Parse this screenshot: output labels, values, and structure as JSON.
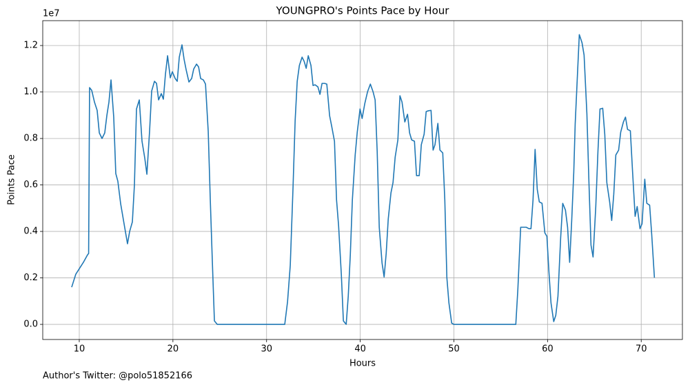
{
  "chart_data": {
    "type": "line",
    "title": "YOUNGPRO's Points Pace by Hour",
    "x_label": "Hours",
    "y_label": "Points Pace",
    "y_offset_label": "1e7",
    "footer": "Author's Twitter: @polo51852166",
    "x": [
      9.19,
      9.63,
      10.44,
      10.88,
      11.0,
      11.1,
      11.33,
      11.62,
      11.91,
      12.14,
      12.43,
      12.72,
      12.95,
      13.17,
      13.39,
      13.68,
      13.9,
      14.12,
      14.42,
      14.86,
      15.15,
      15.38,
      15.67,
      15.89,
      16.11,
      16.41,
      16.7,
      17.0,
      17.22,
      17.51,
      17.73,
      18.03,
      18.25,
      18.47,
      18.76,
      18.98,
      19.2,
      19.43,
      19.72,
      19.94,
      20.24,
      20.46,
      20.68,
      20.97,
      21.19,
      21.41,
      21.71,
      22.0,
      22.22,
      22.52,
      22.74,
      22.96,
      23.25,
      23.48,
      23.77,
      23.99,
      24.21,
      24.43,
      24.73,
      31.94,
      32.24,
      32.53,
      32.83,
      33.05,
      33.27,
      33.5,
      33.79,
      34.01,
      34.23,
      34.45,
      34.74,
      34.96,
      35.18,
      35.48,
      35.7,
      35.92,
      36.21,
      36.43,
      36.73,
      36.95,
      37.25,
      37.47,
      37.69,
      37.98,
      38.2,
      38.5,
      38.72,
      38.94,
      39.16,
      39.46,
      39.68,
      39.98,
      40.2,
      40.49,
      40.78,
      41.08,
      41.37,
      41.59,
      41.81,
      42.03,
      42.33,
      42.55,
      42.77,
      42.99,
      43.28,
      43.5,
      43.73,
      44.02,
      44.24,
      44.46,
      44.76,
      45.05,
      45.27,
      45.49,
      45.79,
      46.01,
      46.3,
      46.52,
      46.82,
      47.04,
      47.26,
      47.56,
      47.78,
      47.98,
      48.29,
      48.51,
      48.81,
      49.03,
      49.25,
      49.47,
      49.76,
      49.98,
      56.61,
      56.83,
      57.13,
      57.42,
      57.72,
      58.01,
      58.23,
      58.45,
      58.67,
      58.9,
      59.12,
      59.41,
      59.71,
      59.93,
      60.15,
      60.37,
      60.66,
      60.88,
      61.11,
      61.4,
      61.62,
      61.91,
      62.14,
      62.36,
      62.58,
      62.8,
      62.95,
      63.17,
      63.39,
      63.68,
      63.9,
      64.2,
      64.42,
      64.64,
      64.86,
      65.15,
      65.38,
      65.6,
      65.89,
      66.11,
      66.33,
      66.63,
      66.85,
      67.07,
      67.29,
      67.59,
      67.81,
      68.1,
      68.32,
      68.54,
      68.84,
      69.06,
      69.35,
      69.57,
      69.87,
      70.09,
      70.38,
      70.6,
      70.9,
      71.12,
      71.41
    ],
    "series": [
      {
        "color": "#1f77b4",
        "values": [
          1600000,
          2160000,
          2670000,
          2990000,
          3050000,
          10190000,
          10070000,
          9570000,
          9210000,
          8240000,
          8000000,
          8240000,
          9000000,
          9570000,
          10520000,
          8920000,
          6490000,
          6160000,
          5190000,
          4150000,
          3470000,
          4000000,
          4410000,
          6010000,
          9270000,
          9660000,
          7880000,
          7140000,
          6460000,
          8330000,
          10040000,
          10460000,
          10370000,
          9660000,
          9930000,
          9690000,
          10760000,
          11560000,
          10610000,
          10870000,
          10580000,
          10460000,
          11500000,
          12030000,
          11410000,
          10960000,
          10430000,
          10580000,
          10990000,
          11200000,
          11080000,
          10580000,
          10520000,
          10340000,
          8300000,
          5360000,
          2700000,
          150000,
          0,
          0,
          980000,
          2550000,
          5960000,
          8770000,
          10460000,
          11140000,
          11500000,
          11320000,
          11020000,
          11560000,
          11140000,
          10280000,
          10310000,
          10220000,
          9900000,
          10370000,
          10370000,
          10340000,
          8980000,
          8530000,
          7880000,
          5360000,
          4240000,
          2160000,
          150000,
          0,
          1210000,
          2990000,
          5360000,
          7290000,
          8270000,
          9270000,
          8860000,
          9510000,
          10010000,
          10340000,
          10010000,
          9660000,
          7440000,
          4180000,
          2640000,
          2040000,
          3050000,
          4530000,
          5660000,
          6100000,
          7200000,
          7940000,
          9840000,
          9570000,
          8710000,
          9040000,
          8240000,
          7940000,
          7880000,
          6400000,
          6400000,
          7730000,
          8180000,
          9160000,
          9190000,
          9210000,
          7500000,
          7730000,
          8650000,
          7500000,
          7380000,
          5360000,
          2010000,
          920000,
          60000,
          0,
          0,
          1510000,
          4180000,
          4180000,
          4180000,
          4120000,
          4120000,
          5360000,
          7530000,
          5810000,
          5270000,
          5210000,
          3940000,
          3790000,
          2250000,
          920000,
          120000,
          390000,
          1210000,
          3730000,
          5210000,
          4920000,
          4180000,
          2670000,
          4470000,
          6550000,
          8620000,
          10550000,
          12470000,
          12120000,
          11590000,
          9070000,
          6100000,
          3410000,
          2900000,
          5070000,
          7440000,
          9270000,
          9300000,
          8180000,
          6100000,
          5270000,
          4470000,
          5600000,
          7290000,
          7500000,
          8270000,
          8710000,
          8920000,
          8390000,
          8330000,
          6700000,
          4650000,
          5070000,
          4120000,
          4330000,
          6250000,
          5210000,
          5130000,
          3880000,
          2010000
        ]
      }
    ],
    "xlim": [
      6.1,
      74.4
    ],
    "xticks": [
      10,
      20,
      30,
      40,
      50,
      60,
      70
    ],
    "ylim": [
      -650000,
      13070000
    ],
    "yticks": [
      {
        "value": 0,
        "label": "0.0"
      },
      {
        "value": 2000000,
        "label": "0.2"
      },
      {
        "value": 4000000,
        "label": "0.4"
      },
      {
        "value": 6000000,
        "label": "0.6"
      },
      {
        "value": 8000000,
        "label": "0.8"
      },
      {
        "value": 10000000,
        "label": "1.0"
      },
      {
        "value": 12000000,
        "label": "1.2"
      }
    ],
    "grid": true
  }
}
